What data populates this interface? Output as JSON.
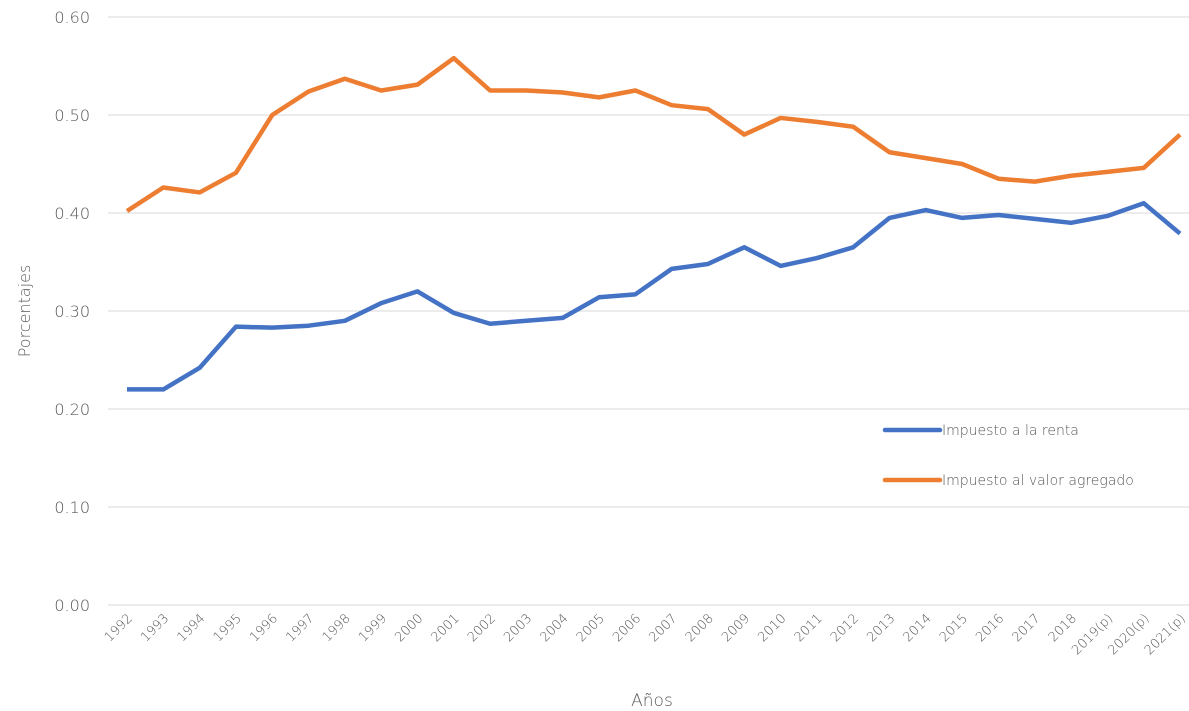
{
  "chart_data": {
    "type": "line",
    "x_label": "Años",
    "y_label": "Porcentajes",
    "categories": [
      "1992",
      "1993",
      "1994",
      "1995",
      "1996",
      "1997",
      "1998",
      "1999",
      "2000",
      "2001",
      "2002",
      "2003",
      "2004",
      "2005",
      "2006",
      "2007",
      "2008",
      "2009",
      "2010",
      "2011",
      "2012",
      "2013",
      "2014",
      "2015",
      "2016",
      "2017",
      "2018",
      "2019(p)",
      "2020(p)",
      "2021(p)"
    ],
    "series": [
      {
        "name": "Impuesto a la renta",
        "color": "#4472c4",
        "values": [
          0.22,
          0.22,
          0.242,
          0.284,
          0.283,
          0.285,
          0.29,
          0.308,
          0.32,
          0.298,
          0.287,
          0.29,
          0.293,
          0.314,
          0.317,
          0.343,
          0.348,
          0.365,
          0.346,
          0.354,
          0.365,
          0.395,
          0.403,
          0.395,
          0.398,
          0.394,
          0.39,
          0.397,
          0.41,
          0.379
        ]
      },
      {
        "name": "Impuesto al valor agregado",
        "color": "#ed7d31",
        "values": [
          0.402,
          0.426,
          0.421,
          0.441,
          0.5,
          0.524,
          0.537,
          0.525,
          0.531,
          0.558,
          0.525,
          0.525,
          0.523,
          0.518,
          0.525,
          0.51,
          0.506,
          0.48,
          0.497,
          0.493,
          0.488,
          0.462,
          0.456,
          0.45,
          0.435,
          0.432,
          0.438,
          0.442,
          0.446,
          0.48
        ]
      }
    ],
    "ylim": [
      0,
      0.6
    ],
    "yticks": [
      {
        "value": 0,
        "label": "0.00"
      },
      {
        "value": 0.1,
        "label": "0.10"
      },
      {
        "value": 0.2,
        "label": "0.20"
      },
      {
        "value": 0.3,
        "label": "0.30"
      },
      {
        "value": 0.4,
        "label": "0.40"
      },
      {
        "value": 0.5,
        "label": "0.50"
      },
      {
        "value": 0.6,
        "label": "0.60"
      }
    ],
    "grid": true,
    "legend": "lower right"
  }
}
